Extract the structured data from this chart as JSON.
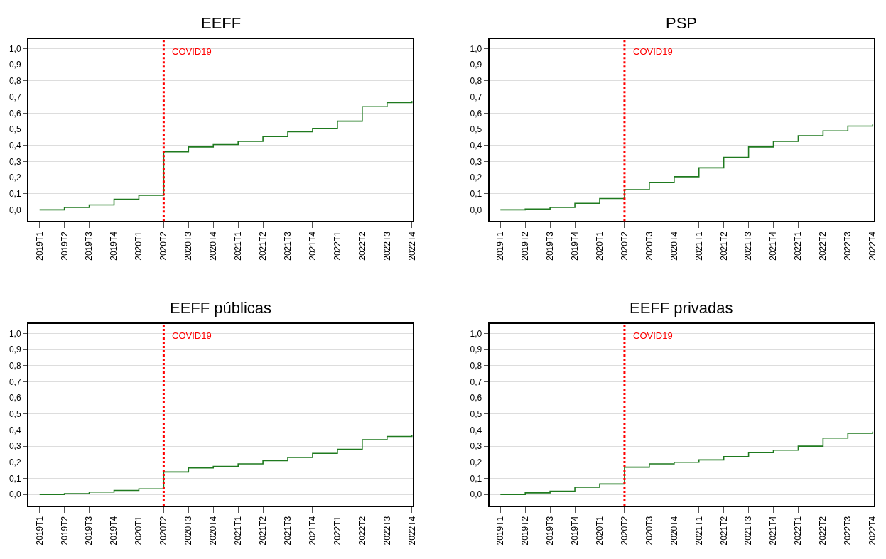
{
  "chart_data": [
    {
      "type": "step",
      "title": "EEFF",
      "categories": [
        "2019T1",
        "2019T2",
        "2019T3",
        "2019T4",
        "2020T1",
        "2020T2",
        "2020T3",
        "2020T4",
        "2021T1",
        "2021T2",
        "2021T3",
        "2021T4",
        "2022T1",
        "2022T2",
        "2022T3",
        "2022T4"
      ],
      "series": [
        {
          "color": "#1f7a1f",
          "values": [
            0.0,
            0.015,
            0.03,
            0.065,
            0.09,
            0.36,
            0.39,
            0.405,
            0.425,
            0.455,
            0.485,
            0.505,
            0.55,
            0.64,
            0.665,
            0.675
          ]
        }
      ],
      "ylim": [
        -0.07,
        1.06
      ],
      "yticks": [
        {
          "value": 0,
          "label": "0,0"
        },
        {
          "value": 0.1,
          "label": "0,1"
        },
        {
          "value": 0.2,
          "label": "0,2"
        },
        {
          "value": 0.3,
          "label": "0,3"
        },
        {
          "value": 0.4,
          "label": "0,4"
        },
        {
          "value": 0.5,
          "label": "0,5"
        },
        {
          "value": 0.6,
          "label": "0,6"
        },
        {
          "value": 0.7,
          "label": "0,7"
        },
        {
          "value": 0.8,
          "label": "0,8"
        },
        {
          "value": 0.9,
          "label": "0,9"
        },
        {
          "value": 1.0,
          "label": "1,0"
        }
      ],
      "grid": "y",
      "ref_lines": [
        {
          "axis": "x",
          "value": "2020T2",
          "label": "COVID19",
          "color": "#ff0000",
          "line_style": "dotted"
        }
      ]
    },
    {
      "type": "step",
      "title": "PSP",
      "categories": [
        "2019T1",
        "2019T2",
        "2019T3",
        "2019T4",
        "2020T1",
        "2020T2",
        "2020T3",
        "2020T4",
        "2021T1",
        "2021T2",
        "2021T3",
        "2021T4",
        "2022T1",
        "2022T2",
        "2022T3",
        "2022T4"
      ],
      "series": [
        {
          "color": "#1f7a1f",
          "values": [
            0.0,
            0.005,
            0.015,
            0.04,
            0.07,
            0.125,
            0.17,
            0.205,
            0.26,
            0.325,
            0.39,
            0.425,
            0.46,
            0.49,
            0.52,
            0.53
          ]
        }
      ],
      "ylim": [
        -0.07,
        1.06
      ],
      "yticks": [
        {
          "value": 0,
          "label": "0,0"
        },
        {
          "value": 0.1,
          "label": "0,1"
        },
        {
          "value": 0.2,
          "label": "0,2"
        },
        {
          "value": 0.3,
          "label": "0,3"
        },
        {
          "value": 0.4,
          "label": "0,4"
        },
        {
          "value": 0.5,
          "label": "0,5"
        },
        {
          "value": 0.6,
          "label": "0,6"
        },
        {
          "value": 0.7,
          "label": "0,7"
        },
        {
          "value": 0.8,
          "label": "0,8"
        },
        {
          "value": 0.9,
          "label": "0,9"
        },
        {
          "value": 1.0,
          "label": "1,0"
        }
      ],
      "grid": "y",
      "ref_lines": [
        {
          "axis": "x",
          "value": "2020T2",
          "label": "COVID19",
          "color": "#ff0000",
          "line_style": "dotted"
        }
      ]
    },
    {
      "type": "step",
      "title": "EEFF públicas",
      "categories": [
        "2019T1",
        "2019T2",
        "2019T3",
        "2019T4",
        "2020T1",
        "2020T2",
        "2020T3",
        "2020T4",
        "2021T1",
        "2021T2",
        "2021T3",
        "2021T4",
        "2022T1",
        "2022T2",
        "2022T3",
        "2022T4"
      ],
      "series": [
        {
          "color": "#1f7a1f",
          "values": [
            0.0,
            0.005,
            0.015,
            0.025,
            0.035,
            0.14,
            0.165,
            0.175,
            0.19,
            0.21,
            0.23,
            0.255,
            0.28,
            0.34,
            0.36,
            0.37
          ]
        }
      ],
      "ylim": [
        -0.07,
        1.06
      ],
      "yticks": [
        {
          "value": 0,
          "label": "0,0"
        },
        {
          "value": 0.1,
          "label": "0,1"
        },
        {
          "value": 0.2,
          "label": "0,2"
        },
        {
          "value": 0.3,
          "label": "0,3"
        },
        {
          "value": 0.4,
          "label": "0,4"
        },
        {
          "value": 0.5,
          "label": "0,5"
        },
        {
          "value": 0.6,
          "label": "0,6"
        },
        {
          "value": 0.7,
          "label": "0,7"
        },
        {
          "value": 0.8,
          "label": "0,8"
        },
        {
          "value": 0.9,
          "label": "0,9"
        },
        {
          "value": 1.0,
          "label": "1,0"
        }
      ],
      "grid": "y",
      "ref_lines": [
        {
          "axis": "x",
          "value": "2020T2",
          "label": "COVID19",
          "color": "#ff0000",
          "line_style": "dotted"
        }
      ]
    },
    {
      "type": "step",
      "title": "EEFF privadas",
      "categories": [
        "2019T1",
        "2019T2",
        "2019T3",
        "2019T4",
        "2020T1",
        "2020T2",
        "2020T3",
        "2020T4",
        "2021T1",
        "2021T2",
        "2021T3",
        "2021T4",
        "2022T1",
        "2022T2",
        "2022T3",
        "2022T4"
      ],
      "series": [
        {
          "color": "#1f7a1f",
          "values": [
            0.0,
            0.01,
            0.02,
            0.045,
            0.065,
            0.17,
            0.19,
            0.2,
            0.215,
            0.235,
            0.26,
            0.275,
            0.3,
            0.35,
            0.38,
            0.39
          ]
        }
      ],
      "ylim": [
        -0.07,
        1.06
      ],
      "yticks": [
        {
          "value": 0,
          "label": "0,0"
        },
        {
          "value": 0.1,
          "label": "0,1"
        },
        {
          "value": 0.2,
          "label": "0,2"
        },
        {
          "value": 0.3,
          "label": "0,3"
        },
        {
          "value": 0.4,
          "label": "0,4"
        },
        {
          "value": 0.5,
          "label": "0,5"
        },
        {
          "value": 0.6,
          "label": "0,6"
        },
        {
          "value": 0.7,
          "label": "0,7"
        },
        {
          "value": 0.8,
          "label": "0,8"
        },
        {
          "value": 0.9,
          "label": "0,9"
        },
        {
          "value": 1.0,
          "label": "1,0"
        }
      ],
      "grid": "y",
      "ref_lines": [
        {
          "axis": "x",
          "value": "2020T2",
          "label": "COVID19",
          "color": "#ff0000",
          "line_style": "dotted"
        }
      ]
    }
  ]
}
